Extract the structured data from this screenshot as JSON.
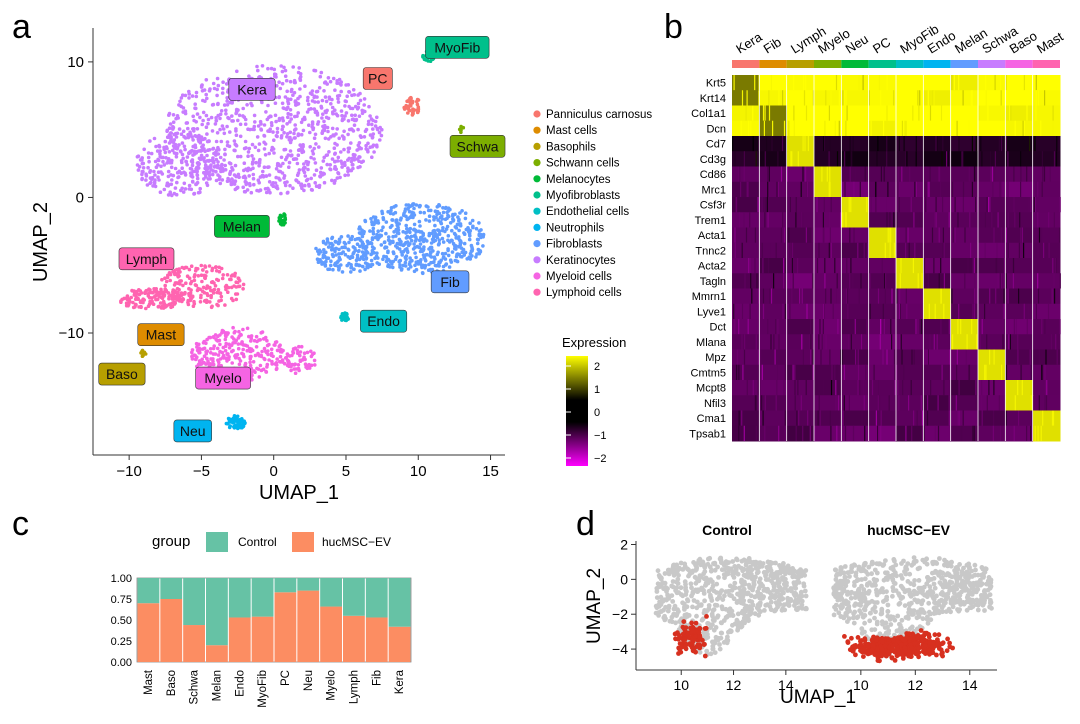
{
  "colors": {
    "panniculus": "#f8766d",
    "mast": "#de8c00",
    "baso": "#b79f00",
    "schwa": "#7cae00",
    "melan": "#00ba38",
    "myofib": "#00c08b",
    "endo": "#00bfc4",
    "neu": "#00b4f0",
    "fib": "#619cff",
    "kera": "#c77cff",
    "myelo": "#f564e3",
    "lymph": "#ff64b0",
    "control": "#66c2a5",
    "hucmsc": "#fc8d62",
    "grey_cell": "#c8c8c8",
    "red_cell": "#d7301f"
  },
  "panels": {
    "a": "a",
    "b": "b",
    "c": "c",
    "d": "d"
  },
  "umap": {
    "xlabel": "UMAP_1",
    "ylabel": "UMAP_2",
    "xticks": [
      "−10",
      "−5",
      "0",
      "5",
      "10",
      "15"
    ],
    "yticks": [
      "10",
      "0",
      "−10"
    ],
    "legend": [
      "Panniculus carnosus",
      "Mast cells",
      "Basophils",
      "Schwann cells",
      "Melanocytes",
      "Myofibroblasts",
      "Endothelial cells",
      "Neutrophils",
      "Fibroblasts",
      "Keratinocytes",
      "Myeloid cells",
      "Lymphoid cells"
    ],
    "cluster_labels": {
      "kera": "Kera",
      "pc": "PC",
      "myofib": "MyoFib",
      "schwa": "Schwa",
      "melan": "Melan",
      "fib": "Fib",
      "lymph": "Lymph",
      "endo": "Endo",
      "mast": "Mast",
      "baso": "Baso",
      "myelo": "Myelo",
      "neu": "Neu"
    }
  },
  "chart_data": [
    {
      "type": "scatter",
      "title": "",
      "xlabel": "UMAP_1",
      "ylabel": "UMAP_2",
      "xlim": [
        -12.5,
        16
      ],
      "ylim": [
        -19,
        12.5
      ],
      "clusters": [
        {
          "name": "Keratinocytes",
          "label": "Kera",
          "center": [
            0,
            5
          ]
        },
        {
          "name": "Panniculus carnosus",
          "label": "PC",
          "center": [
            9.8,
            6.6
          ]
        },
        {
          "name": "Myofibroblasts",
          "label": "MyoFib",
          "center": [
            10.8,
            10.3
          ]
        },
        {
          "name": "Schwann cells",
          "label": "Schwa",
          "center": [
            13,
            5
          ]
        },
        {
          "name": "Melanocytes",
          "label": "Melan",
          "center": [
            0.6,
            -1.5
          ]
        },
        {
          "name": "Fibroblasts",
          "label": "Fib",
          "center": [
            10,
            -3
          ]
        },
        {
          "name": "Lymphoid cells",
          "label": "Lymph",
          "center": [
            -5,
            -6.5
          ]
        },
        {
          "name": "Endothelial cells",
          "label": "Endo",
          "center": [
            4.9,
            -8.8
          ]
        },
        {
          "name": "Mast cells",
          "label": "Mast",
          "center": [
            -9,
            -11.2
          ]
        },
        {
          "name": "Basophils",
          "label": "Baso",
          "center": [
            -9,
            -11.5
          ]
        },
        {
          "name": "Myeloid cells",
          "label": "Myelo",
          "center": [
            -2.5,
            -12
          ]
        },
        {
          "name": "Neutrophils",
          "label": "Neu",
          "center": [
            -2.6,
            -16.5
          ]
        }
      ]
    },
    {
      "type": "heatmap",
      "title": "",
      "column_groups": [
        "Kera",
        "Fib",
        "Lymph",
        "Myelo",
        "Neu",
        "PC",
        "MyoFib",
        "Endo",
        "Melan",
        "Schwa",
        "Baso",
        "Mast"
      ],
      "rows": [
        "Krt5",
        "Krt14",
        "Col1a1",
        "Dcn",
        "Cd7",
        "Cd3g",
        "Cd86",
        "Mrc1",
        "Csf3r",
        "Trem1",
        "Acta1",
        "Tnnc2",
        "Acta2",
        "Tagln",
        "Mmrn1",
        "Lyve1",
        "Dct",
        "Mlana",
        "Mpz",
        "Cmtm5",
        "Mcpt8",
        "Nfil3",
        "Cma1",
        "Tpsab1"
      ],
      "legend_title": "Expression",
      "legend_ticks": [
        "2",
        "1",
        "0",
        "−1",
        "−2"
      ],
      "range": [
        -2.5,
        2.5
      ]
    },
    {
      "type": "bar",
      "stacked": true,
      "legend_title": "group",
      "categories": [
        "Mast",
        "Baso",
        "Schwa",
        "Melan",
        "Endo",
        "MyoFib",
        "PC",
        "Neu",
        "Myelo",
        "Lymph",
        "Fib",
        "Kera"
      ],
      "series": [
        {
          "name": "hucMSC−EV",
          "values": [
            0.7,
            0.75,
            0.44,
            0.2,
            0.53,
            0.54,
            0.83,
            0.85,
            0.66,
            0.55,
            0.53,
            0.42
          ]
        },
        {
          "name": "Control",
          "values": [
            0.3,
            0.25,
            0.56,
            0.8,
            0.47,
            0.46,
            0.17,
            0.15,
            0.34,
            0.45,
            0.47,
            0.58
          ]
        }
      ],
      "yticks": [
        "1.00",
        "0.75",
        "0.50",
        "0.25",
        "0.00"
      ],
      "ylim": [
        0,
        1
      ]
    },
    {
      "type": "scatter",
      "xlabel": "UMAP_1",
      "ylabel": "UMAP_2",
      "facets": [
        "Control",
        "hucMSC−EV"
      ],
      "xticks": [
        "10",
        "12",
        "14"
      ],
      "yticks": [
        "2",
        "0",
        "−2",
        "−4"
      ],
      "xlim": [
        8.5,
        15
      ],
      "ylim": [
        -5.2,
        2.2
      ]
    }
  ]
}
